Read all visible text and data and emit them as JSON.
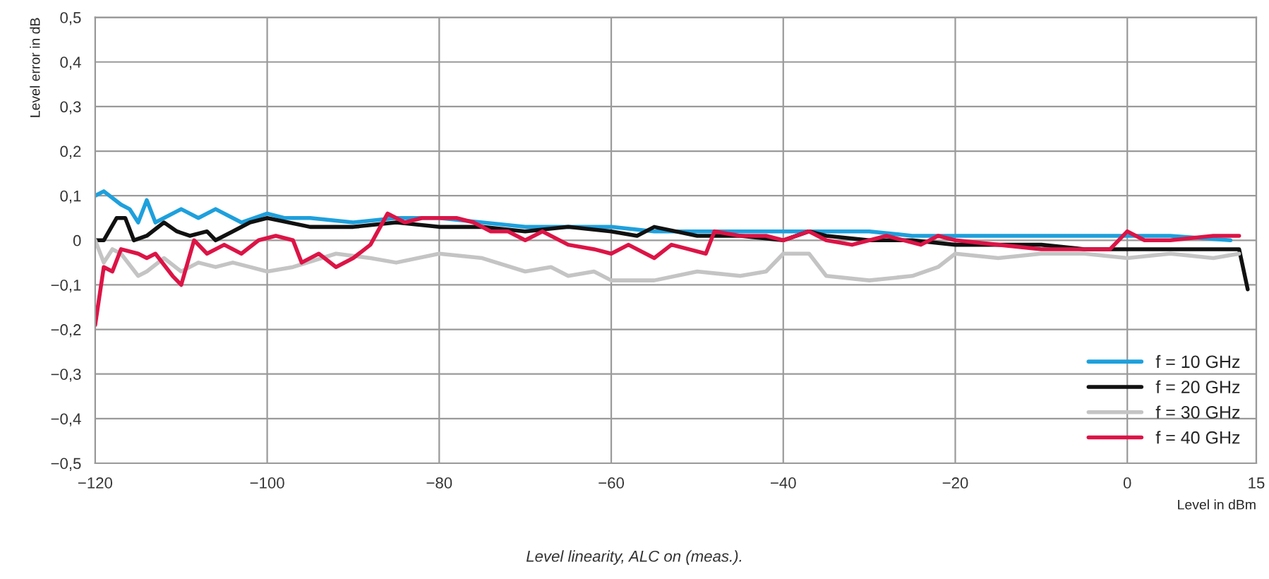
{
  "chart_data": {
    "type": "line",
    "xlabel": "Level in dBm",
    "ylabel": "Level error in dB",
    "annotations": [
      "Level linearity, ALC on (meas.)."
    ],
    "xlim": [
      -120,
      15
    ],
    "xticks": [
      {
        "value": -120,
        "label": "−120"
      },
      {
        "value": -100,
        "label": "−100"
      },
      {
        "value": -80,
        "label": "−80"
      },
      {
        "value": -60,
        "label": "−60"
      },
      {
        "value": -40,
        "label": "−40"
      },
      {
        "value": -20,
        "label": "−20"
      },
      0,
      15
    ],
    "ylim": [
      -0.5,
      0.5
    ],
    "yticks": [
      {
        "value": -0.5,
        "label": "−0,5"
      },
      {
        "value": -0.4,
        "label": "−0,4"
      },
      {
        "value": -0.3,
        "label": "−0,3"
      },
      {
        "value": -0.2,
        "label": "−0,2"
      },
      {
        "value": -0.1,
        "label": "−0,1"
      },
      0,
      {
        "value": 0.1,
        "label": "0,1"
      },
      {
        "value": 0.2,
        "label": "0,2"
      },
      {
        "value": 0.3,
        "label": "0,3"
      },
      {
        "value": 0.4,
        "label": "0,4"
      },
      {
        "value": 0.5,
        "label": "0,5"
      }
    ],
    "grid": true,
    "legend": "bottom right",
    "line_style": "solid",
    "marker": "none",
    "series": [
      {
        "name": "f = 10 GHz",
        "color": "#1ea0dc",
        "x": [
          -120,
          -119,
          -117,
          -116,
          -115,
          -114,
          -113,
          -112,
          -110,
          -108,
          -106,
          -104,
          -103,
          -100,
          -98,
          -95,
          -90,
          -85,
          -80,
          -75,
          -70,
          -65,
          -60,
          -55,
          -50,
          -45,
          -40,
          -35,
          -30,
          -25,
          -20,
          -15,
          -10,
          -5,
          0,
          5,
          12
        ],
        "values": [
          0.1,
          0.11,
          0.08,
          0.07,
          0.04,
          0.09,
          0.04,
          0.05,
          0.07,
          0.05,
          0.07,
          0.05,
          0.04,
          0.06,
          0.05,
          0.05,
          0.04,
          0.05,
          0.05,
          0.04,
          0.03,
          0.03,
          0.03,
          0.02,
          0.02,
          0.02,
          0.02,
          0.02,
          0.02,
          0.01,
          0.01,
          0.01,
          0.01,
          0.01,
          0.01,
          0.01,
          0.0
        ]
      },
      {
        "name": "f = 20 GHz",
        "color": "#111111",
        "x": [
          -120,
          -119,
          -117.5,
          -116.5,
          -115.5,
          -114,
          -112,
          -110.5,
          -109,
          -107,
          -106,
          -104,
          -102,
          -100,
          -95,
          -90,
          -85,
          -80,
          -75,
          -70,
          -65,
          -60,
          -57,
          -55,
          -50,
          -45,
          -40,
          -37,
          -35,
          -30,
          -25,
          -20,
          -15,
          -10,
          -5,
          0,
          5,
          10,
          13,
          14
        ],
        "values": [
          0,
          0,
          0.05,
          0.05,
          0.0,
          0.01,
          0.04,
          0.02,
          0.01,
          0.02,
          0,
          0.02,
          0.04,
          0.05,
          0.03,
          0.03,
          0.04,
          0.03,
          0.03,
          0.02,
          0.03,
          0.02,
          0.01,
          0.03,
          0.01,
          0.01,
          0,
          0.02,
          0.01,
          0,
          0,
          -0.01,
          -0.01,
          -0.01,
          -0.02,
          -0.02,
          -0.02,
          -0.02,
          -0.02,
          -0.11
        ]
      },
      {
        "name": "f = 30 GHz",
        "color": "#c4c4c4",
        "x": [
          -120,
          -119,
          -118,
          -117,
          -115,
          -114,
          -112,
          -110,
          -108,
          -106,
          -104,
          -102,
          -100,
          -97,
          -92,
          -88,
          -85,
          -80,
          -75,
          -70,
          -67,
          -65,
          -62,
          -60,
          -55,
          -50,
          -45,
          -42,
          -40,
          -37,
          -35,
          -30,
          -25,
          -22,
          -20,
          -15,
          -10,
          -5,
          0,
          5,
          10,
          13
        ],
        "values": [
          0,
          -0.05,
          -0.02,
          -0.03,
          -0.08,
          -0.07,
          -0.04,
          -0.07,
          -0.05,
          -0.06,
          -0.05,
          -0.06,
          -0.07,
          -0.06,
          -0.03,
          -0.04,
          -0.05,
          -0.03,
          -0.04,
          -0.07,
          -0.06,
          -0.08,
          -0.07,
          -0.09,
          -0.09,
          -0.07,
          -0.08,
          -0.07,
          -0.03,
          -0.03,
          -0.08,
          -0.09,
          -0.08,
          -0.06,
          -0.03,
          -0.04,
          -0.03,
          -0.03,
          -0.04,
          -0.03,
          -0.04,
          -0.03
        ]
      },
      {
        "name": "f = 40 GHz",
        "color": "#dc1446",
        "x": [
          -120,
          -119,
          -118,
          -117,
          -115,
          -114,
          -113,
          -111,
          -110,
          -108.5,
          -107,
          -105,
          -103,
          -101,
          -99,
          -97,
          -96,
          -94,
          -92,
          -90,
          -88,
          -86,
          -84,
          -82,
          -80,
          -78,
          -76,
          -74,
          -72,
          -70,
          -68,
          -65,
          -62,
          -60,
          -58,
          -55,
          -53,
          -51,
          -49,
          -48,
          -45,
          -42,
          -40,
          -37,
          -35,
          -32,
          -28,
          -24,
          -22,
          -20,
          -15,
          -10,
          -5,
          -2,
          0,
          2,
          5,
          10,
          13
        ],
        "values": [
          -0.19,
          -0.06,
          -0.07,
          -0.02,
          -0.03,
          -0.04,
          -0.03,
          -0.08,
          -0.1,
          0.0,
          -0.03,
          -0.01,
          -0.03,
          0,
          0.01,
          0,
          -0.05,
          -0.03,
          -0.06,
          -0.04,
          -0.01,
          0.06,
          0.04,
          0.05,
          0.05,
          0.05,
          0.04,
          0.02,
          0.02,
          0,
          0.02,
          -0.01,
          -0.02,
          -0.03,
          -0.01,
          -0.04,
          -0.01,
          -0.02,
          -0.03,
          0.02,
          0.01,
          0.01,
          0,
          0.02,
          0,
          -0.01,
          0.01,
          -0.01,
          0.01,
          0,
          -0.01,
          -0.02,
          -0.02,
          -0.02,
          0.02,
          0,
          0,
          0.01,
          0.01
        ]
      }
    ]
  }
}
